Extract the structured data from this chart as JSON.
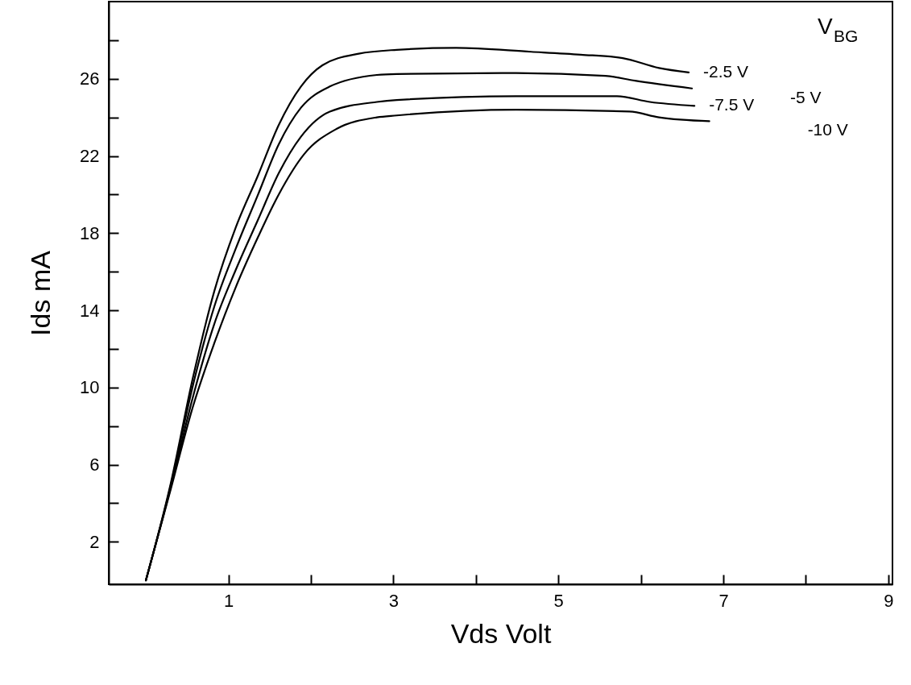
{
  "chart_data": {
    "type": "line",
    "xlabel": "Vds  Volt",
    "ylabel": "Ids  mA",
    "legend_title": "V$_{BG}$",
    "xlim": [
      -0.45,
      9.05
    ],
    "ylim": [
      -0.2,
      30
    ],
    "xticks": [
      1,
      {
        "value": 2,
        "label": null
      },
      3,
      {
        "value": 4,
        "label": null
      },
      5,
      {
        "value": 6,
        "label": null
      },
      7,
      {
        "value": 8,
        "label": null
      },
      9
    ],
    "yticks": [
      2,
      {
        "value": 4,
        "label": null
      },
      6,
      {
        "value": 8,
        "label": null
      },
      10,
      {
        "value": 12,
        "label": null
      },
      14,
      {
        "value": 16,
        "label": null
      },
      18,
      {
        "value": 20,
        "label": null
      },
      22,
      {
        "value": 24,
        "label": null
      },
      26,
      {
        "value": 28,
        "label": null
      }
    ],
    "grid": false,
    "marker": "none",
    "line_style": "solid",
    "series": [
      {
        "name": "-2.5 V",
        "color": "#000000",
        "x": [
          0,
          0.3,
          0.57,
          0.83,
          1.09,
          1.36,
          1.61,
          1.88,
          2.14,
          2.58,
          3.04,
          3.76,
          4.67,
          5.27,
          5.78,
          6.22,
          6.58
        ],
        "values": [
          0,
          5.0,
          10.5,
          15.0,
          18.3,
          21.0,
          23.6,
          25.6,
          26.7,
          27.3,
          27.5,
          27.6,
          27.4,
          27.25,
          27.07,
          26.56,
          26.33
        ]
      },
      {
        "name": "-5 V",
        "color": "#000000",
        "x": [
          0,
          0.3,
          0.57,
          0.83,
          1.09,
          1.36,
          1.61,
          1.88,
          2.23,
          2.8,
          3.04,
          4.49,
          5.57,
          5.93,
          6.62
        ],
        "values": [
          0,
          4.9,
          10.1,
          14.2,
          17.2,
          20.0,
          22.6,
          24.5,
          25.6,
          26.2,
          26.25,
          26.3,
          26.15,
          25.9,
          25.5
        ]
      },
      {
        "name": "-7.5 V",
        "color": "#000000",
        "x": [
          0,
          0.3,
          0.57,
          0.83,
          1.09,
          1.36,
          1.61,
          1.88,
          2.23,
          2.8,
          3.04,
          4.49,
          5.71,
          6.11,
          6.65
        ],
        "values": [
          0,
          4.8,
          9.5,
          13.3,
          16.1,
          18.7,
          21.1,
          23.0,
          24.3,
          24.8,
          24.9,
          25.1,
          25.1,
          24.8,
          24.6
        ]
      },
      {
        "name": "-10 V",
        "color": "#000000",
        "x": [
          0,
          0.3,
          0.57,
          0.83,
          1.09,
          1.36,
          1.61,
          1.92,
          2.31,
          2.8,
          3.04,
          4.49,
          5.86,
          6.22,
          6.83
        ],
        "values": [
          0,
          4.7,
          9.0,
          12.3,
          15.2,
          17.8,
          20.0,
          22.1,
          23.4,
          24.0,
          24.1,
          24.4,
          24.3,
          24.0,
          23.8
        ]
      }
    ]
  }
}
